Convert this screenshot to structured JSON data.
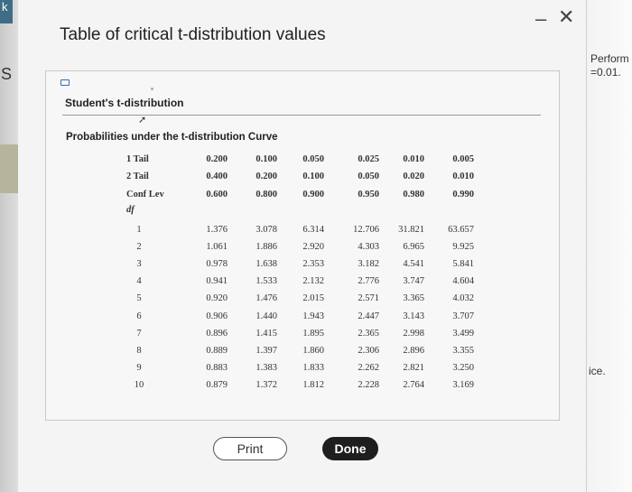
{
  "dialog": {
    "title": "Table of critical t-distribution values",
    "minimize_glyph": "–",
    "close_glyph": "✕"
  },
  "panel": {
    "heading": "Student's t-distribution",
    "subheading": "Probabilities under the t-distribution Curve"
  },
  "table": {
    "row_labels": [
      "1 Tail",
      "2 Tail",
      "Conf Lev"
    ],
    "df_label": "df",
    "columns": [
      {
        "tail1": "0.200",
        "tail2": "0.400",
        "conf": "0.600"
      },
      {
        "tail1": "0.100",
        "tail2": "0.200",
        "conf": "0.800"
      },
      {
        "tail1": "0.050",
        "tail2": "0.100",
        "conf": "0.900"
      },
      {
        "tail1": "0.025",
        "tail2": "0.050",
        "conf": "0.950"
      },
      {
        "tail1": "0.010",
        "tail2": "0.020",
        "conf": "0.980"
      },
      {
        "tail1": "0.005",
        "tail2": "0.010",
        "conf": "0.990"
      }
    ],
    "rows": [
      {
        "df": "1",
        "values": [
          "1.376",
          "3.078",
          "6.314",
          "12.706",
          "31.821",
          "63.657"
        ]
      },
      {
        "df": "2",
        "values": [
          "1.061",
          "1.886",
          "2.920",
          "4.303",
          "6.965",
          "9.925"
        ]
      },
      {
        "df": "3",
        "values": [
          "0.978",
          "1.638",
          "2.353",
          "3.182",
          "4.541",
          "5.841"
        ]
      },
      {
        "df": "4",
        "values": [
          "0.941",
          "1.533",
          "2.132",
          "2.776",
          "3.747",
          "4.604"
        ]
      },
      {
        "df": "5",
        "values": [
          "0.920",
          "1.476",
          "2.015",
          "2.571",
          "3.365",
          "4.032"
        ]
      },
      {
        "df": "6",
        "values": [
          "0.906",
          "1.440",
          "1.943",
          "2.447",
          "3.143",
          "3.707"
        ]
      },
      {
        "df": "7",
        "values": [
          "0.896",
          "1.415",
          "1.895",
          "2.365",
          "2.998",
          "3.499"
        ]
      },
      {
        "df": "8",
        "values": [
          "0.889",
          "1.397",
          "1.860",
          "2.306",
          "2.896",
          "3.355"
        ]
      },
      {
        "df": "9",
        "values": [
          "0.883",
          "1.383",
          "1.833",
          "2.262",
          "2.821",
          "3.250"
        ]
      },
      {
        "df": "10",
        "values": [
          "0.879",
          "1.372",
          "1.812",
          "2.228",
          "2.764",
          "3.169"
        ]
      }
    ]
  },
  "buttons": {
    "print_label": "Print",
    "done_label": "Done"
  },
  "background": {
    "left_tab_char": "k",
    "left_char": "S",
    "right_text_line1": "Perform a",
    "right_text_line2": "=0.01.",
    "right_text_bottom": "ice."
  }
}
